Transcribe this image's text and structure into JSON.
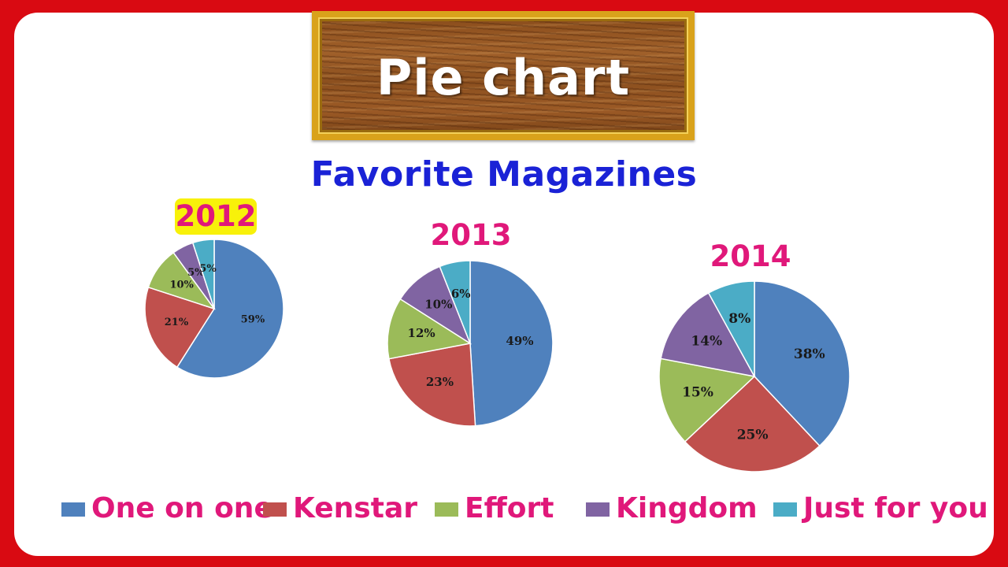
{
  "banner": {
    "title": "Pie chart"
  },
  "colors": {
    "frame": "#d90a12",
    "title": "#1a22d6",
    "accent": "#e0187a",
    "highlight": "#f8f10a",
    "series": [
      "#4f81bd",
      "#c0504d",
      "#9bbb59",
      "#8064a2",
      "#4bacc6"
    ]
  },
  "chart_data": {
    "type": "pie",
    "title": "Favorite Magazines",
    "categories": [
      "One on one",
      "Kenstar",
      "Effort",
      "Kingdom",
      "Just for you"
    ],
    "series": [
      {
        "name": "2012",
        "values": [
          59,
          21,
          10,
          5,
          5
        ]
      },
      {
        "name": "2013",
        "values": [
          49,
          23,
          12,
          10,
          6
        ]
      },
      {
        "name": "2014",
        "values": [
          38,
          25,
          15,
          14,
          8
        ]
      }
    ],
    "legend_position": "bottom"
  }
}
